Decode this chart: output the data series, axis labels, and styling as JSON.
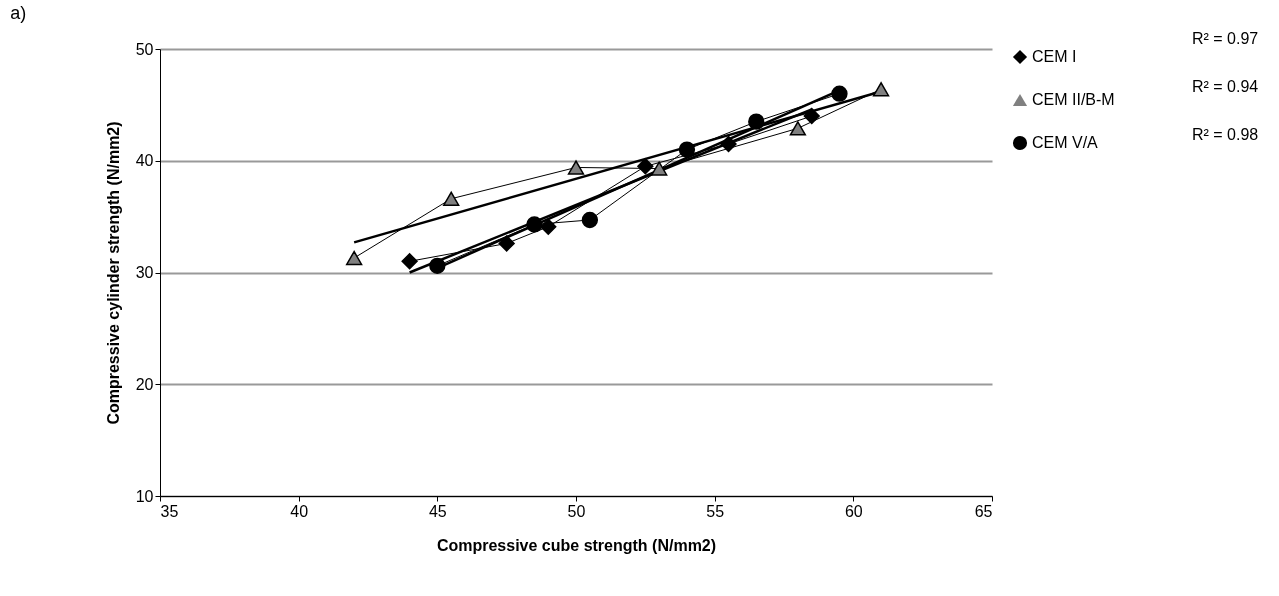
{
  "chart_data": {
    "type": "line",
    "title": "a)",
    "xlabel": "Compressive cube strength (N/mm2)",
    "ylabel": "Compressive cylinder strength (N/mm2)",
    "xlim": [
      35,
      65
    ],
    "xticks": [
      35,
      40,
      45,
      50,
      55,
      60,
      65
    ],
    "ylim": [
      10,
      50
    ],
    "yticks": [
      10,
      20,
      30,
      40,
      50
    ],
    "grid": "y",
    "legend": "right",
    "annotations": [
      "R² = 0.97",
      "R² = 0.94",
      "R² = 0.98"
    ],
    "series": [
      {
        "name": "CEM I",
        "color": "#000000",
        "marker": "diamond",
        "x": [
          44,
          47.5,
          49,
          52.5,
          55.5,
          58.5
        ],
        "values": [
          31.0,
          32.6,
          34.1,
          39.5,
          41.5,
          44.0
        ]
      },
      {
        "name": "CEM II/B-M",
        "color": "#808080",
        "marker": "triangle",
        "x": [
          42,
          45.5,
          50,
          53,
          58,
          61
        ],
        "values": [
          31.3,
          36.6,
          39.4,
          39.3,
          42.9,
          46.4
        ]
      },
      {
        "name": "CEM V/A",
        "color": "#000000",
        "marker": "circle",
        "x": [
          45,
          48.5,
          50.5,
          54,
          56.5,
          59.5
        ],
        "values": [
          30.6,
          34.3,
          34.7,
          41.0,
          43.5,
          46.0
        ]
      },
      {
        "type": "line",
        "color": "#000000",
        "marker": "none",
        "x": [
          44,
          58.5
        ],
        "values": [
          30.0,
          44.6
        ]
      },
      {
        "type": "line",
        "color": "#000000",
        "marker": "none",
        "x": [
          42,
          61
        ],
        "values": [
          32.7,
          46.2
        ]
      },
      {
        "type": "line",
        "color": "#000000",
        "marker": "none",
        "x": [
          45,
          59.5
        ],
        "values": [
          30.4,
          46.3
        ]
      }
    ]
  }
}
